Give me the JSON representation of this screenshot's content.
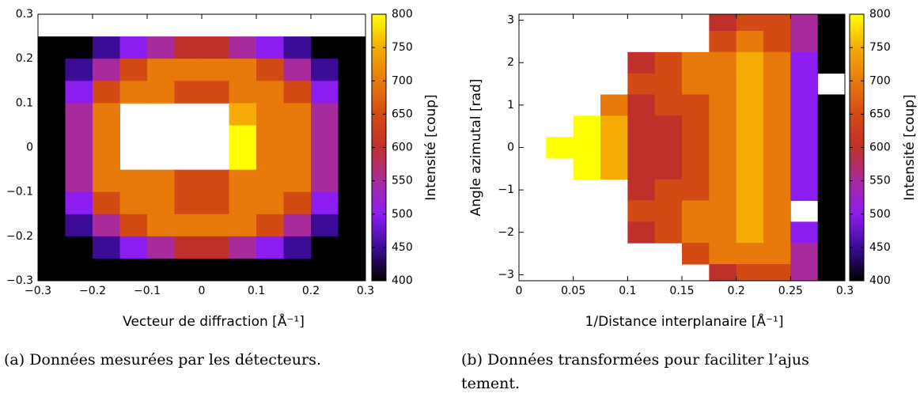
{
  "chart_data": [
    {
      "type": "heatmap",
      "xlabel": "Vecteur de diffraction [Å⁻¹]",
      "colorbar_label": "Intensité [coup]",
      "caption": [
        "(a) Données mesurées par les détecteurs."
      ],
      "xlim": [
        -0.3,
        0.3
      ],
      "ylim": [
        -0.3,
        0.3
      ],
      "xticks": [
        {
          "value": -0.3,
          "label": "−0.3"
        },
        {
          "value": -0.2,
          "label": "−0.2"
        },
        {
          "value": -0.1,
          "label": "−0.1"
        },
        0,
        0.1,
        0.2,
        0.3
      ],
      "yticks": [
        {
          "value": -0.3,
          "label": "−0.3"
        },
        {
          "value": -0.2,
          "label": "−0.2"
        },
        {
          "value": -0.1,
          "label": "−0.1"
        },
        0,
        0.1,
        0.2,
        0.3
      ],
      "clim": [
        400,
        800
      ],
      "cticks": [
        400,
        450,
        500,
        550,
        600,
        650,
        700,
        750,
        800
      ],
      "colormap": [
        "#000000",
        "#3c0c96",
        "#8c1cf0",
        "#a82a9c",
        "#c0302a",
        "#d44a14",
        "#e87a0c",
        "#f4ac04",
        "#ffff00"
      ],
      "x": [
        -0.275,
        -0.225,
        -0.175,
        -0.125,
        -0.075,
        -0.025,
        0.025,
        0.075,
        0.125,
        0.175,
        0.225,
        0.275
      ],
      "y": [
        0.275,
        0.225,
        0.175,
        0.125,
        0.075,
        0.025,
        -0.025,
        -0.075,
        -0.125,
        -0.175,
        -0.225,
        -0.275
      ],
      "z": [
        [
          null,
          null,
          null,
          null,
          null,
          null,
          null,
          null,
          null,
          null,
          null,
          null
        ],
        [
          400,
          400,
          450,
          500,
          550,
          600,
          600,
          550,
          500,
          450,
          400,
          400
        ],
        [
          400,
          450,
          550,
          650,
          700,
          700,
          700,
          700,
          650,
          550,
          450,
          400
        ],
        [
          400,
          500,
          650,
          700,
          700,
          650,
          650,
          700,
          700,
          650,
          500,
          400
        ],
        [
          400,
          550,
          700,
          null,
          null,
          null,
          null,
          750,
          700,
          700,
          550,
          400
        ],
        [
          400,
          550,
          700,
          null,
          null,
          null,
          null,
          800,
          700,
          700,
          550,
          400
        ],
        [
          400,
          550,
          700,
          null,
          null,
          null,
          null,
          800,
          700,
          700,
          550,
          400
        ],
        [
          400,
          550,
          700,
          700,
          700,
          650,
          650,
          700,
          700,
          700,
          550,
          400
        ],
        [
          400,
          500,
          650,
          700,
          700,
          650,
          650,
          700,
          700,
          650,
          500,
          400
        ],
        [
          400,
          450,
          550,
          650,
          700,
          700,
          700,
          700,
          650,
          550,
          450,
          400
        ],
        [
          400,
          400,
          450,
          500,
          550,
          600,
          600,
          550,
          500,
          450,
          400,
          400
        ],
        [
          400,
          400,
          400,
          400,
          400,
          400,
          400,
          400,
          400,
          400,
          400,
          400
        ]
      ]
    },
    {
      "type": "heatmap",
      "xlabel": "1/Distance interplanaire [Å⁻¹]",
      "ylabel": "Angle azimutal [rad]",
      "colorbar_label": "Intensité [coup]",
      "caption": [
        "(b) Données transformées pour faciliter l’ajus",
        "tement."
      ],
      "xlim": [
        0,
        0.3
      ],
      "ylim": [
        -3.1416,
        3.1416
      ],
      "xticks": [
        0,
        0.05,
        0.1,
        0.15,
        0.2,
        0.25,
        0.3
      ],
      "yticks": [
        {
          "value": -3,
          "label": "−3"
        },
        {
          "value": -2,
          "label": "−2"
        },
        {
          "value": -1,
          "label": "−1"
        },
        0,
        1,
        2,
        3
      ],
      "clim": [
        400,
        800
      ],
      "cticks": [
        400,
        450,
        500,
        550,
        600,
        650,
        700,
        750,
        800
      ],
      "colormap": [
        "#000000",
        "#3c0c96",
        "#8c1cf0",
        "#a82a9c",
        "#c0302a",
        "#d44a14",
        "#e87a0c",
        "#f4ac04",
        "#ffff00"
      ],
      "x": [
        0.0125,
        0.0375,
        0.0625,
        0.0875,
        0.1125,
        0.1375,
        0.1625,
        0.1875,
        0.2125,
        0.2375,
        0.2625,
        0.2875
      ],
      "y": [
        3,
        2.5,
        2,
        1.5,
        1,
        0.5,
        0,
        -0.5,
        -1,
        -1.5,
        -2,
        -2.5,
        -3
      ],
      "z": [
        [
          null,
          null,
          null,
          null,
          null,
          null,
          null,
          600,
          650,
          650,
          550,
          400
        ],
        [
          null,
          null,
          null,
          null,
          null,
          null,
          null,
          650,
          700,
          650,
          550,
          400
        ],
        [
          null,
          null,
          null,
          null,
          600,
          650,
          700,
          700,
          750,
          700,
          500,
          400
        ],
        [
          null,
          null,
          null,
          null,
          650,
          650,
          700,
          700,
          750,
          700,
          500,
          null
        ],
        [
          null,
          null,
          null,
          700,
          600,
          650,
          650,
          700,
          750,
          700,
          500,
          400
        ],
        [
          null,
          null,
          800,
          750,
          600,
          600,
          650,
          700,
          750,
          700,
          500,
          400
        ],
        [
          null,
          800,
          800,
          750,
          600,
          600,
          650,
          700,
          750,
          700,
          500,
          400
        ],
        [
          null,
          null,
          800,
          750,
          600,
          600,
          650,
          700,
          750,
          700,
          500,
          400
        ],
        [
          null,
          null,
          null,
          null,
          600,
          650,
          650,
          700,
          750,
          700,
          500,
          400
        ],
        [
          null,
          null,
          null,
          null,
          650,
          650,
          700,
          700,
          750,
          700,
          null,
          400
        ],
        [
          null,
          null,
          null,
          null,
          600,
          650,
          700,
          700,
          750,
          700,
          500,
          400
        ],
        [
          null,
          null,
          null,
          null,
          null,
          null,
          650,
          700,
          700,
          700,
          550,
          400
        ],
        [
          null,
          null,
          null,
          null,
          null,
          null,
          null,
          600,
          650,
          650,
          550,
          400
        ]
      ]
    }
  ]
}
